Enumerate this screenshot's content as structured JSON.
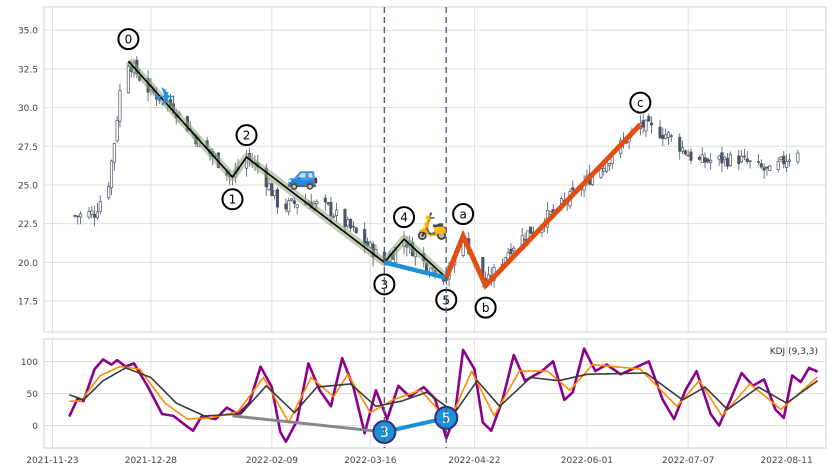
{
  "chart_data": [
    {
      "type": "candlestick",
      "title": "",
      "xlabel": "",
      "ylabel": "",
      "ylim": [
        15.5,
        36.5
      ],
      "xlim": [
        "2021-11-20",
        "2022-08-25"
      ],
      "grid": true,
      "yticks": [
        "17.5",
        "20.0",
        "22.5",
        "25.0",
        "27.5",
        "30.0",
        "32.5",
        "35.0"
      ],
      "close_anchors": [
        {
          "date": "2021-12-01",
          "close": 23.0
        },
        {
          "date": "2021-12-08",
          "close": 23.2
        },
        {
          "date": "2021-12-13",
          "close": 25.2
        },
        {
          "date": "2021-12-15",
          "close": 27.8
        },
        {
          "date": "2021-12-17",
          "close": 31.0
        },
        {
          "date": "2021-12-20",
          "close": 33.0
        },
        {
          "date": "2021-12-27",
          "close": 31.2
        },
        {
          "date": "2022-01-05",
          "close": 30.0
        },
        {
          "date": "2022-01-14",
          "close": 27.8
        },
        {
          "date": "2022-01-21",
          "close": 26.5
        },
        {
          "date": "2022-01-26",
          "close": 25.5
        },
        {
          "date": "2022-01-31",
          "close": 26.8
        },
        {
          "date": "2022-02-05",
          "close": 26.0
        },
        {
          "date": "2022-02-12",
          "close": 23.5
        },
        {
          "date": "2022-02-20",
          "close": 24.0
        },
        {
          "date": "2022-03-01",
          "close": 23.5
        },
        {
          "date": "2022-03-10",
          "close": 22.0
        },
        {
          "date": "2022-03-21",
          "close": 20.0
        },
        {
          "date": "2022-03-28",
          "close": 21.5
        },
        {
          "date": "2022-04-04",
          "close": 20.0
        },
        {
          "date": "2022-04-12",
          "close": 19.0
        },
        {
          "date": "2022-04-18",
          "close": 21.7
        },
        {
          "date": "2022-04-26",
          "close": 18.5
        },
        {
          "date": "2022-05-05",
          "close": 21.0
        },
        {
          "date": "2022-05-15",
          "close": 22.5
        },
        {
          "date": "2022-05-25",
          "close": 24.0
        },
        {
          "date": "2022-06-05",
          "close": 26.0
        },
        {
          "date": "2022-06-20",
          "close": 28.9
        },
        {
          "date": "2022-06-30",
          "close": 28.2
        },
        {
          "date": "2022-07-10",
          "close": 26.5
        },
        {
          "date": "2022-07-25",
          "close": 26.7
        },
        {
          "date": "2022-08-05",
          "close": 25.8
        },
        {
          "date": "2022-08-15",
          "close": 27.3
        }
      ],
      "wave_labels": [
        {
          "label": "0",
          "date": "2021-12-20",
          "value": 33.0,
          "place": "above"
        },
        {
          "label": "1",
          "date": "2022-01-26",
          "value": 25.5,
          "place": "below"
        },
        {
          "label": "2",
          "date": "2022-01-31",
          "value": 26.8,
          "place": "above"
        },
        {
          "label": "3",
          "date": "2022-03-21",
          "value": 20.0,
          "place": "below"
        },
        {
          "label": "4",
          "date": "2022-03-28",
          "value": 21.5,
          "place": "above"
        },
        {
          "label": "5",
          "date": "2022-04-12",
          "value": 19.0,
          "place": "below"
        },
        {
          "label": "a",
          "date": "2022-04-18",
          "value": 21.7,
          "place": "above"
        },
        {
          "label": "b",
          "date": "2022-04-26",
          "value": 18.5,
          "place": "below"
        },
        {
          "label": "c",
          "date": "2022-06-20",
          "value": 28.9,
          "place": "above"
        }
      ],
      "impulse_wave": [
        {
          "date": "2021-12-20",
          "value": 33.0
        },
        {
          "date": "2022-01-26",
          "value": 25.5
        },
        {
          "date": "2022-01-31",
          "value": 26.8
        },
        {
          "date": "2022-03-21",
          "value": 20.0
        },
        {
          "date": "2022-03-28",
          "value": 21.5
        },
        {
          "date": "2022-04-12",
          "value": 19.0
        }
      ],
      "wave_3_to_5": [
        {
          "date": "2022-03-21",
          "value": 20.0
        },
        {
          "date": "2022-04-12",
          "value": 19.0
        }
      ],
      "corrective_wave": [
        {
          "date": "2022-04-12",
          "value": 19.0
        },
        {
          "date": "2022-04-18",
          "value": 21.7
        },
        {
          "date": "2022-04-26",
          "value": 18.5
        },
        {
          "date": "2022-06-20",
          "value": 28.9
        }
      ],
      "vertical_markers": [
        "2022-03-21",
        "2022-04-12"
      ],
      "icons": [
        {
          "name": "airplane-icon",
          "glyph": "✈",
          "date": "2022-01-02",
          "value": 30.6
        },
        {
          "name": "car-icon",
          "glyph": "🚙",
          "date": "2022-02-20",
          "value": 25.5
        },
        {
          "name": "scooter-icon",
          "glyph": "🛵",
          "date": "2022-04-07",
          "value": 22.3
        }
      ],
      "colors": {
        "candle": "#4a5568",
        "impulse": "#000000",
        "impulse_halo": "#8fa876",
        "wave35": "#1e90d6",
        "corrective": "#e04e14",
        "marker": "#4a6280"
      }
    },
    {
      "type": "line",
      "title": "",
      "legend_text": "KDJ (9,3,3)",
      "legend_position": "top-right",
      "ylim": [
        -35,
        135
      ],
      "yticks": [
        "0",
        "50",
        "100"
      ],
      "xticks": [
        "2021-11-23",
        "2021-12-28",
        "2022-02-09",
        "2022-03-16",
        "2022-04-22",
        "2022-06-01",
        "2022-07-07",
        "2022-08-11"
      ],
      "series": [
        {
          "color": "#8b008b",
          "points": [
            {
              "date": "2021-11-29",
              "value": 14
            },
            {
              "date": "2021-12-02",
              "value": 43
            },
            {
              "date": "2021-12-04",
              "value": 38
            },
            {
              "date": "2021-12-08",
              "value": 88
            },
            {
              "date": "2021-12-11",
              "value": 103
            },
            {
              "date": "2021-12-14",
              "value": 95
            },
            {
              "date": "2021-12-16",
              "value": 102
            },
            {
              "date": "2021-12-19",
              "value": 92
            },
            {
              "date": "2021-12-22",
              "value": 97
            },
            {
              "date": "2021-12-27",
              "value": 60
            },
            {
              "date": "2022-01-01",
              "value": 18
            },
            {
              "date": "2022-01-05",
              "value": 15
            },
            {
              "date": "2022-01-10",
              "value": -2
            },
            {
              "date": "2022-01-12",
              "value": -8
            },
            {
              "date": "2022-01-15",
              "value": 14
            },
            {
              "date": "2022-01-20",
              "value": 10
            },
            {
              "date": "2022-01-24",
              "value": 28
            },
            {
              "date": "2022-01-28",
              "value": 18
            },
            {
              "date": "2022-02-01",
              "value": 35
            },
            {
              "date": "2022-02-05",
              "value": 92
            },
            {
              "date": "2022-02-09",
              "value": 60
            },
            {
              "date": "2022-02-12",
              "value": -10
            },
            {
              "date": "2022-02-14",
              "value": -25
            },
            {
              "date": "2022-02-18",
              "value": 8
            },
            {
              "date": "2022-02-22",
              "value": 97
            },
            {
              "date": "2022-02-26",
              "value": 55
            },
            {
              "date": "2022-03-02",
              "value": 30
            },
            {
              "date": "2022-03-06",
              "value": 105
            },
            {
              "date": "2022-03-10",
              "value": 60
            },
            {
              "date": "2022-03-14",
              "value": -12
            },
            {
              "date": "2022-03-18",
              "value": 55
            },
            {
              "date": "2022-03-22",
              "value": 10
            },
            {
              "date": "2022-03-26",
              "value": 62
            },
            {
              "date": "2022-03-30",
              "value": 45
            },
            {
              "date": "2022-04-04",
              "value": 60
            },
            {
              "date": "2022-04-08",
              "value": 42
            },
            {
              "date": "2022-04-12",
              "value": -20
            },
            {
              "date": "2022-04-15",
              "value": 15
            },
            {
              "date": "2022-04-18",
              "value": 118
            },
            {
              "date": "2022-04-22",
              "value": 88
            },
            {
              "date": "2022-04-25",
              "value": 5
            },
            {
              "date": "2022-04-28",
              "value": -8
            },
            {
              "date": "2022-05-02",
              "value": 40
            },
            {
              "date": "2022-05-06",
              "value": 110
            },
            {
              "date": "2022-05-10",
              "value": 70
            },
            {
              "date": "2022-05-16",
              "value": 85
            },
            {
              "date": "2022-05-20",
              "value": 100
            },
            {
              "date": "2022-05-24",
              "value": 40
            },
            {
              "date": "2022-05-27",
              "value": 52
            },
            {
              "date": "2022-05-31",
              "value": 120
            },
            {
              "date": "2022-06-04",
              "value": 85
            },
            {
              "date": "2022-06-08",
              "value": 95
            },
            {
              "date": "2022-06-13",
              "value": 80
            },
            {
              "date": "2022-06-18",
              "value": 90
            },
            {
              "date": "2022-06-23",
              "value": 100
            },
            {
              "date": "2022-06-28",
              "value": 40
            },
            {
              "date": "2022-07-02",
              "value": 10
            },
            {
              "date": "2022-07-06",
              "value": 55
            },
            {
              "date": "2022-07-10",
              "value": 85
            },
            {
              "date": "2022-07-15",
              "value": 18
            },
            {
              "date": "2022-07-18",
              "value": 0
            },
            {
              "date": "2022-07-22",
              "value": 40
            },
            {
              "date": "2022-07-26",
              "value": 82
            },
            {
              "date": "2022-07-30",
              "value": 62
            },
            {
              "date": "2022-08-03",
              "value": 72
            },
            {
              "date": "2022-08-07",
              "value": 25
            },
            {
              "date": "2022-08-10",
              "value": 12
            },
            {
              "date": "2022-08-13",
              "value": 78
            },
            {
              "date": "2022-08-16",
              "value": 68
            },
            {
              "date": "2022-08-19",
              "value": 90
            },
            {
              "date": "2022-08-22",
              "value": 84
            }
          ]
        },
        {
          "color": "#ff8c00",
          "points": [
            {
              "date": "2021-11-29",
              "value": 38
            },
            {
              "date": "2021-12-03",
              "value": 38
            },
            {
              "date": "2021-12-10",
              "value": 78
            },
            {
              "date": "2021-12-17",
              "value": 92
            },
            {
              "date": "2021-12-24",
              "value": 88
            },
            {
              "date": "2022-01-02",
              "value": 35
            },
            {
              "date": "2022-01-10",
              "value": 10
            },
            {
              "date": "2022-01-18",
              "value": 12
            },
            {
              "date": "2022-01-28",
              "value": 22
            },
            {
              "date": "2022-02-06",
              "value": 75
            },
            {
              "date": "2022-02-15",
              "value": 5
            },
            {
              "date": "2022-02-23",
              "value": 75
            },
            {
              "date": "2022-03-03",
              "value": 45
            },
            {
              "date": "2022-03-08",
              "value": 80
            },
            {
              "date": "2022-03-16",
              "value": 20
            },
            {
              "date": "2022-03-24",
              "value": 40
            },
            {
              "date": "2022-04-03",
              "value": 55
            },
            {
              "date": "2022-04-13",
              "value": 5
            },
            {
              "date": "2022-04-21",
              "value": 85
            },
            {
              "date": "2022-04-29",
              "value": 15
            },
            {
              "date": "2022-05-08",
              "value": 85
            },
            {
              "date": "2022-05-18",
              "value": 85
            },
            {
              "date": "2022-05-26",
              "value": 55
            },
            {
              "date": "2022-06-03",
              "value": 95
            },
            {
              "date": "2022-06-20",
              "value": 88
            },
            {
              "date": "2022-07-03",
              "value": 30
            },
            {
              "date": "2022-07-11",
              "value": 70
            },
            {
              "date": "2022-07-19",
              "value": 15
            },
            {
              "date": "2022-07-29",
              "value": 65
            },
            {
              "date": "2022-08-09",
              "value": 25
            },
            {
              "date": "2022-08-22",
              "value": 76
            }
          ]
        },
        {
          "color": "#3a3a3a",
          "points": [
            {
              "date": "2021-11-29",
              "value": 48
            },
            {
              "date": "2021-12-04",
              "value": 40
            },
            {
              "date": "2021-12-11",
              "value": 70
            },
            {
              "date": "2021-12-19",
              "value": 90
            },
            {
              "date": "2021-12-28",
              "value": 75
            },
            {
              "date": "2022-01-06",
              "value": 35
            },
            {
              "date": "2022-01-16",
              "value": 15
            },
            {
              "date": "2022-01-29",
              "value": 18
            },
            {
              "date": "2022-02-07",
              "value": 62
            },
            {
              "date": "2022-02-17",
              "value": 20
            },
            {
              "date": "2022-02-25",
              "value": 60
            },
            {
              "date": "2022-03-09",
              "value": 65
            },
            {
              "date": "2022-03-18",
              "value": 30
            },
            {
              "date": "2022-03-27",
              "value": 38
            },
            {
              "date": "2022-04-05",
              "value": 52
            },
            {
              "date": "2022-04-15",
              "value": 20
            },
            {
              "date": "2022-04-23",
              "value": 70
            },
            {
              "date": "2022-05-01",
              "value": 30
            },
            {
              "date": "2022-05-12",
              "value": 75
            },
            {
              "date": "2022-05-22",
              "value": 70
            },
            {
              "date": "2022-06-01",
              "value": 80
            },
            {
              "date": "2022-06-22",
              "value": 82
            },
            {
              "date": "2022-07-05",
              "value": 40
            },
            {
              "date": "2022-07-13",
              "value": 60
            },
            {
              "date": "2022-07-21",
              "value": 25
            },
            {
              "date": "2022-08-01",
              "value": 60
            },
            {
              "date": "2022-08-11",
              "value": 35
            },
            {
              "date": "2022-08-22",
              "value": 70
            }
          ]
        }
      ],
      "wave_line_grey": [
        {
          "date": "2022-01-26",
          "value": 15
        },
        {
          "date": "2022-03-21",
          "value": -10
        }
      ],
      "wave_line_blue": [
        {
          "date": "2022-03-21",
          "value": -10
        },
        {
          "date": "2022-04-12",
          "value": 12
        }
      ],
      "wave_dots": [
        {
          "label": "3",
          "date": "2022-03-21",
          "value": -10
        },
        {
          "label": "5",
          "date": "2022-04-12",
          "value": 12
        }
      ],
      "vertical_markers": [
        "2022-03-21",
        "2022-04-12"
      ]
    }
  ]
}
